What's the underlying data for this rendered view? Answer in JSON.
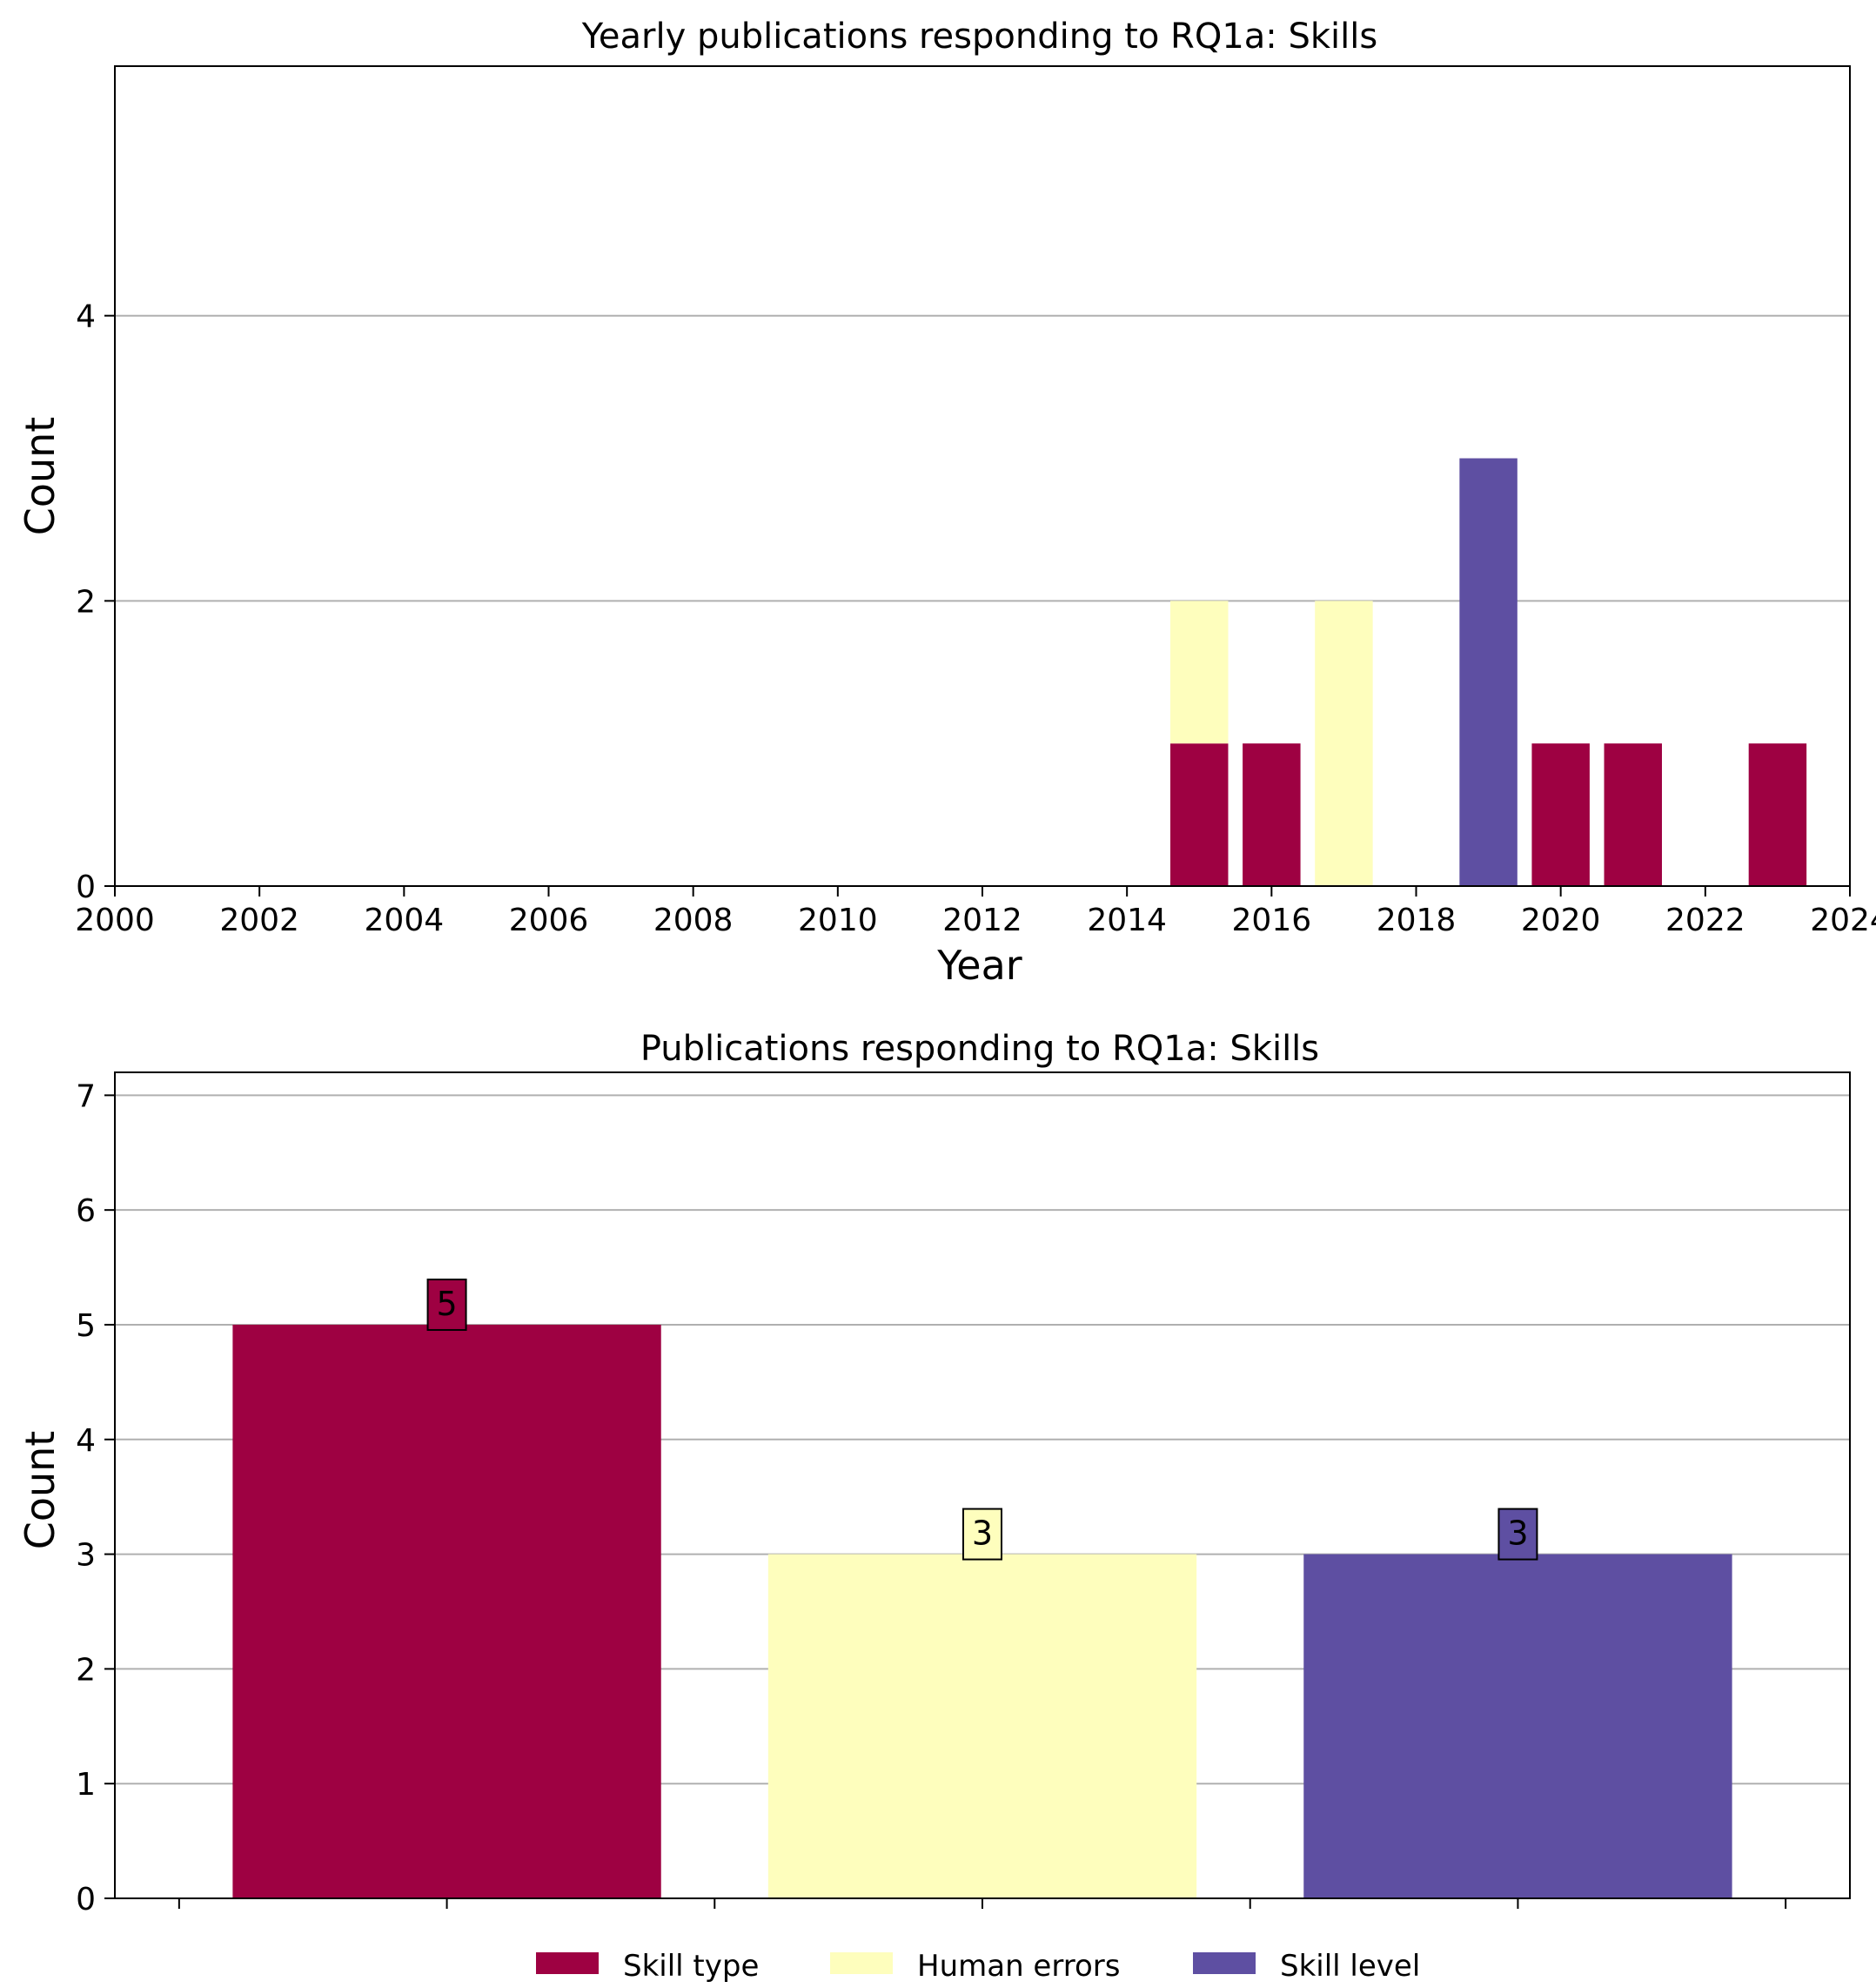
{
  "colors": {
    "skill_type": "#9e0142",
    "human_errors": "#fefebd",
    "skill_level": "#5e4fa2",
    "grid": "#b0b0b0",
    "axis": "#000000"
  },
  "chart_data": [
    {
      "type": "bar",
      "stacked": true,
      "title": "Yearly publications responding to RQ1a: Skills",
      "xlabel": "Year",
      "ylabel": "Count",
      "xlim": [
        2000,
        2024
      ],
      "ylim": [
        0,
        5.75
      ],
      "xticks": [
        2000,
        2002,
        2004,
        2006,
        2008,
        2010,
        2012,
        2014,
        2016,
        2018,
        2020,
        2022,
        2024
      ],
      "yticks": [
        0,
        2,
        4
      ],
      "grid": "y",
      "x": [
        2015,
        2016,
        2017,
        2019,
        2020,
        2021,
        2023
      ],
      "series": [
        {
          "name": "Skill type",
          "color": "#9e0142",
          "values": [
            1,
            1,
            0,
            0,
            1,
            1,
            1
          ]
        },
        {
          "name": "Human errors",
          "color": "#fefebd",
          "values": [
            1,
            0,
            2,
            0,
            0,
            0,
            0
          ]
        },
        {
          "name": "Skill level",
          "color": "#5e4fa2",
          "values": [
            0,
            0,
            0,
            3,
            0,
            0,
            0
          ]
        }
      ]
    },
    {
      "type": "bar",
      "title": "Publications responding to RQ1a: Skills",
      "xlabel": "",
      "ylabel": "Count",
      "ylim": [
        0,
        7.2
      ],
      "yticks": [
        0,
        1,
        2,
        3,
        4,
        5,
        6,
        7
      ],
      "grid": "y",
      "categories": [
        "Skill type",
        "Human errors",
        "Skill level"
      ],
      "values": [
        5,
        3,
        3
      ],
      "data_labels": [
        "5",
        "3",
        "3"
      ],
      "colors": [
        "#9e0142",
        "#fefebd",
        "#5e4fa2"
      ]
    }
  ],
  "legend": {
    "placement": "bottom-center",
    "items": [
      {
        "label": "Skill type",
        "color": "#9e0142"
      },
      {
        "label": "Human errors",
        "color": "#fefebd"
      },
      {
        "label": "Skill level",
        "color": "#5e4fa2"
      }
    ]
  }
}
